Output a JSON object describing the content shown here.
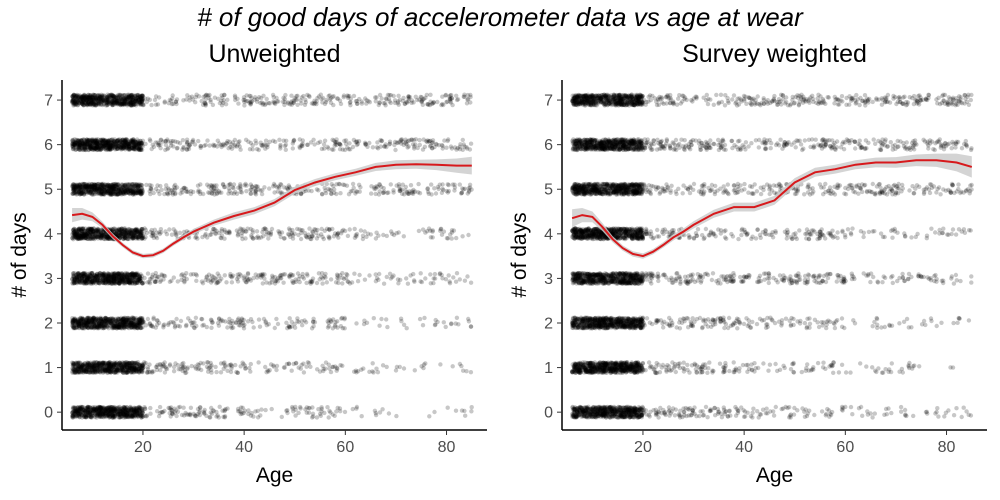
{
  "title": "# of good days of accelerometer data vs age at wear",
  "chart_data": [
    {
      "type": "scatter",
      "title": "Unweighted",
      "xlabel": "Age",
      "ylabel": "# of days",
      "xlim": [
        4,
        88
      ],
      "ylim": [
        -0.4,
        7.45
      ],
      "xticks": [
        20,
        40,
        60,
        80
      ],
      "yticks": [
        0,
        1,
        2,
        3,
        4,
        5,
        6,
        7
      ],
      "grid": false,
      "legend": "none",
      "point_color": "#000000",
      "points_note_values": "jittered points at integer day counts 0-7 for ages 6-85",
      "smooth": {
        "color": "#d7191c",
        "band_color": "#cccccc",
        "x": [
          6,
          8,
          10,
          12,
          14,
          16,
          18,
          20,
          22,
          24,
          26,
          28,
          30,
          34,
          38,
          42,
          46,
          50,
          54,
          58,
          62,
          66,
          70,
          74,
          78,
          82,
          85
        ],
        "y": [
          4.42,
          4.45,
          4.38,
          4.2,
          3.95,
          3.75,
          3.58,
          3.5,
          3.52,
          3.62,
          3.78,
          3.92,
          4.05,
          4.25,
          4.4,
          4.52,
          4.7,
          4.98,
          5.15,
          5.28,
          5.38,
          5.5,
          5.55,
          5.56,
          5.55,
          5.53,
          5.53
        ],
        "band_halfwidth": [
          0.16,
          0.13,
          0.1,
          0.07,
          0.06,
          0.05,
          0.05,
          0.05,
          0.05,
          0.05,
          0.05,
          0.05,
          0.06,
          0.07,
          0.08,
          0.08,
          0.08,
          0.08,
          0.08,
          0.08,
          0.08,
          0.09,
          0.1,
          0.1,
          0.12,
          0.16,
          0.2
        ]
      }
    },
    {
      "type": "scatter",
      "title": "Survey weighted",
      "xlabel": "Age",
      "ylabel": "# of days",
      "xlim": [
        4,
        88
      ],
      "ylim": [
        -0.4,
        7.45
      ],
      "xticks": [
        20,
        40,
        60,
        80
      ],
      "yticks": [
        0,
        1,
        2,
        3,
        4,
        5,
        6,
        7
      ],
      "grid": false,
      "legend": "none",
      "point_color": "#000000",
      "smooth": {
        "color": "#d7191c",
        "band_color": "#cccccc",
        "x": [
          6,
          8,
          10,
          12,
          14,
          16,
          18,
          20,
          22,
          24,
          26,
          28,
          30,
          34,
          38,
          42,
          46,
          50,
          54,
          58,
          62,
          66,
          70,
          74,
          78,
          82,
          85
        ],
        "y": [
          4.35,
          4.42,
          4.38,
          4.15,
          3.88,
          3.68,
          3.55,
          3.5,
          3.6,
          3.75,
          3.92,
          4.05,
          4.2,
          4.45,
          4.6,
          4.6,
          4.75,
          5.15,
          5.38,
          5.45,
          5.55,
          5.6,
          5.6,
          5.65,
          5.65,
          5.6,
          5.5
        ],
        "band_halfwidth": [
          0.2,
          0.16,
          0.12,
          0.09,
          0.07,
          0.06,
          0.06,
          0.06,
          0.06,
          0.06,
          0.07,
          0.07,
          0.08,
          0.09,
          0.1,
          0.1,
          0.1,
          0.1,
          0.1,
          0.1,
          0.1,
          0.11,
          0.12,
          0.13,
          0.15,
          0.2,
          0.24
        ]
      }
    }
  ]
}
